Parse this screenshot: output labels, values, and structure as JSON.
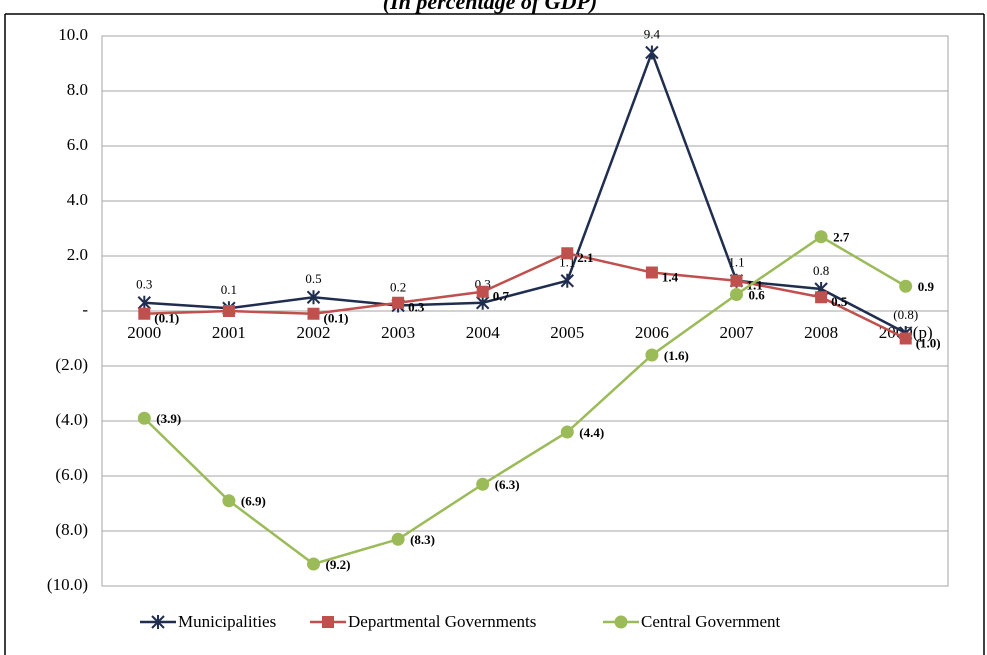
{
  "chart_data": {
    "type": "line",
    "subtitle": "(In percentage of GDP)",
    "categories": [
      "2000",
      "2001",
      "2002",
      "2003",
      "2004",
      "2005",
      "2006",
      "2007",
      "2008",
      "2009(p)"
    ],
    "series": [
      {
        "name": "Municipalities",
        "color": "#1f2d4e",
        "marker": "asterisk",
        "values": [
          0.3,
          0.1,
          0.5,
          0.2,
          0.3,
          1.1,
          9.4,
          1.1,
          0.8,
          -0.8
        ],
        "value_labels": [
          "0.3",
          "0.1",
          "0.5",
          "0.2",
          "0.3",
          "1.1",
          "9.4",
          "1.1",
          "0.8",
          "(0.8)"
        ]
      },
      {
        "name": "Departmental Governments",
        "color": "#c0504d",
        "marker": "square",
        "values": [
          -0.1,
          0.0,
          -0.1,
          0.3,
          0.7,
          2.1,
          1.4,
          1.1,
          0.5,
          -1.0
        ],
        "value_labels": [
          "(0.1)",
          null,
          "(0.1)",
          "0.3",
          "0.7",
          "2.1",
          "1.4",
          "1.1",
          "0.5",
          "(1.0)"
        ]
      },
      {
        "name": "Central Government",
        "color": "#9bbb59",
        "marker": "circle",
        "values": [
          -3.9,
          -6.9,
          -9.2,
          -8.3,
          -6.3,
          -4.4,
          -1.6,
          0.6,
          2.7,
          0.9
        ],
        "value_labels": [
          "(3.9)",
          "(6.9)",
          "(9.2)",
          "(8.3)",
          "(6.3)",
          "(4.4)",
          "(1.6)",
          "0.6",
          "2.7",
          "0.9"
        ]
      }
    ],
    "ylim": [
      -10,
      10
    ],
    "yticks": [
      {
        "value": 10,
        "label": "10.0"
      },
      {
        "value": 8,
        "label": "8.0"
      },
      {
        "value": 6,
        "label": "6.0"
      },
      {
        "value": 4,
        "label": "4.0"
      },
      {
        "value": 2,
        "label": "2.0"
      },
      {
        "value": 0,
        "label": "-"
      },
      {
        "value": -2,
        "label": "(2.0)"
      },
      {
        "value": -4,
        "label": "(4.0)"
      },
      {
        "value": -6,
        "label": "(6.0)"
      },
      {
        "value": -8,
        "label": "(8.0)"
      },
      {
        "value": -10,
        "label": "(10.0)"
      }
    ],
    "grid": true,
    "legend": "bottom"
  }
}
